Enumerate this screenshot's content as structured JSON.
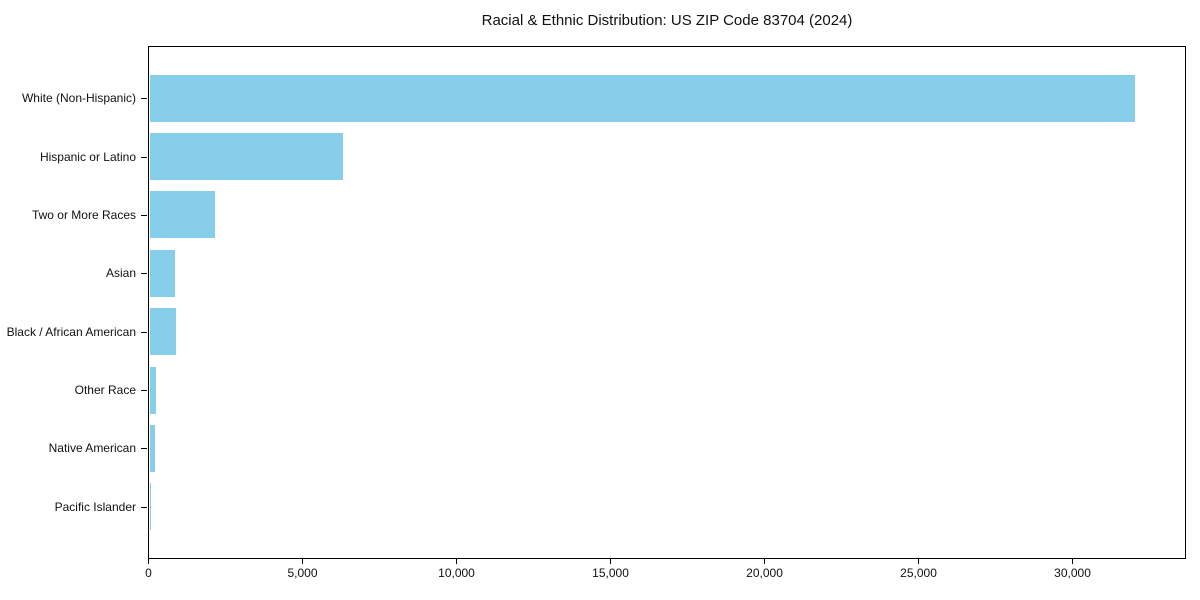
{
  "chart_data": {
    "type": "bar",
    "orientation": "horizontal",
    "title": "Racial & Ethnic Distribution: US ZIP Code 83704 (2024)",
    "categories": [
      "White (Non-Hispanic)",
      "Hispanic or Latino",
      "Two or More Races",
      "Asian",
      "Black / African American",
      "Other Race",
      "Native American",
      "Pacific Islander"
    ],
    "values": [
      32100,
      6300,
      2110,
      810,
      845,
      195,
      160,
      45
    ],
    "xlabel": "",
    "ylabel": "",
    "xlim": [
      0,
      33700
    ],
    "x_ticks": [
      0,
      5000,
      10000,
      15000,
      20000,
      25000,
      30000
    ],
    "x_tick_labels": [
      "0",
      "5,000",
      "10,000",
      "15,000",
      "20,000",
      "25,000",
      "30,000"
    ],
    "bar_color": "#87CEEB",
    "axis_color": "#000000",
    "text_color": "#111111",
    "background_color": "#ffffff",
    "grid": false,
    "legend": "none"
  }
}
